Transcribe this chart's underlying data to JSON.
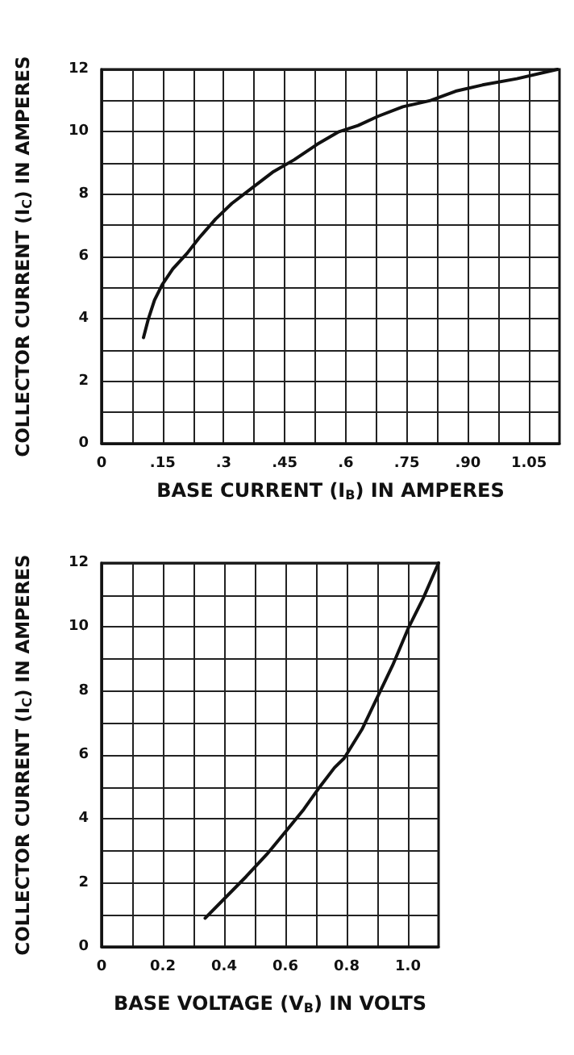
{
  "chart_data": [
    {
      "type": "line",
      "xlabel": "BASE CURRENT (I$_{B}$) IN AMPERES",
      "ylabel": "COLLECTOR CURRENT (I$_{C}$) IN AMPERES",
      "xlim": [
        0,
        1.125
      ],
      "ylim": [
        0,
        12
      ],
      "xticks": [
        0,
        {
          "value": 0.075,
          "label": null
        },
        {
          "value": 0.15,
          "label": ".15"
        },
        {
          "value": 0.225,
          "label": null
        },
        {
          "value": 0.3,
          "label": ".3"
        },
        {
          "value": 0.375,
          "label": null
        },
        {
          "value": 0.45,
          "label": ".45"
        },
        {
          "value": 0.525,
          "label": null
        },
        {
          "value": 0.6,
          "label": ".6"
        },
        {
          "value": 0.675,
          "label": null
        },
        {
          "value": 0.75,
          "label": ".75"
        },
        {
          "value": 0.825,
          "label": null
        },
        {
          "value": 0.9,
          "label": ".90"
        },
        {
          "value": 0.975,
          "label": null
        },
        {
          "value": 1.05,
          "label": "1.05"
        }
      ],
      "yticks": [
        0,
        {
          "value": 1,
          "label": null
        },
        2,
        {
          "value": 3,
          "label": null
        },
        4,
        {
          "value": 5,
          "label": null
        },
        6,
        {
          "value": 7,
          "label": null
        },
        8,
        {
          "value": 9,
          "label": null
        },
        10,
        {
          "value": 11,
          "label": null
        },
        12
      ],
      "grid": true,
      "marker": "none",
      "line_style": "solid",
      "series": [
        {
          "color": "#111111",
          "x": [
            0.103,
            0.115,
            0.13,
            0.149,
            0.175,
            0.21,
            0.24,
            0.28,
            0.32,
            0.37,
            0.42,
            0.473,
            0.53,
            0.583,
            0.63,
            0.68,
            0.74,
            0.808,
            0.87,
            0.936,
            1.02,
            1.12
          ],
          "values": [
            3.4,
            4.0,
            4.6,
            5.1,
            5.6,
            6.1,
            6.6,
            7.2,
            7.7,
            8.2,
            8.7,
            9.1,
            9.6,
            10.0,
            10.2,
            10.5,
            10.8,
            11.0,
            11.3,
            11.5,
            11.7,
            12.0
          ]
        }
      ]
    },
    {
      "type": "line",
      "xlabel": "BASE VOLTAGE (V$_{B}$) IN VOLTS",
      "ylabel": "COLLECTOR CURRENT (I$_{C}$) IN AMPERES",
      "xlim": [
        0,
        1.1
      ],
      "ylim": [
        0,
        12
      ],
      "xticks": [
        0,
        {
          "value": 0.1,
          "label": null
        },
        {
          "value": 0.2,
          "label": "0.2"
        },
        {
          "value": 0.3,
          "label": null
        },
        {
          "value": 0.4,
          "label": "0.4"
        },
        {
          "value": 0.5,
          "label": null
        },
        {
          "value": 0.6,
          "label": "0.6"
        },
        {
          "value": 0.7,
          "label": null
        },
        {
          "value": 0.8,
          "label": "0.8"
        },
        {
          "value": 0.9,
          "label": null
        },
        {
          "value": 1.0,
          "label": "1.0"
        }
      ],
      "yticks": [
        0,
        {
          "value": 1,
          "label": null
        },
        2,
        {
          "value": 3,
          "label": null
        },
        4,
        {
          "value": 5,
          "label": null
        },
        6,
        {
          "value": 7,
          "label": null
        },
        8,
        {
          "value": 9,
          "label": null
        },
        10,
        {
          "value": 11,
          "label": null
        },
        12
      ],
      "grid": true,
      "marker": "none",
      "line_style": "solid",
      "series": [
        {
          "color": "#111111",
          "x": [
            0.338,
            0.4,
            0.472,
            0.54,
            0.609,
            0.66,
            0.712,
            0.76,
            0.792,
            0.85,
            0.9,
            0.95,
            1.003,
            1.05,
            1.1
          ],
          "values": [
            0.9,
            1.5,
            2.2,
            2.9,
            3.7,
            4.3,
            5.0,
            5.6,
            5.9,
            6.8,
            7.8,
            8.8,
            10.0,
            10.9,
            12.0
          ]
        }
      ]
    }
  ]
}
